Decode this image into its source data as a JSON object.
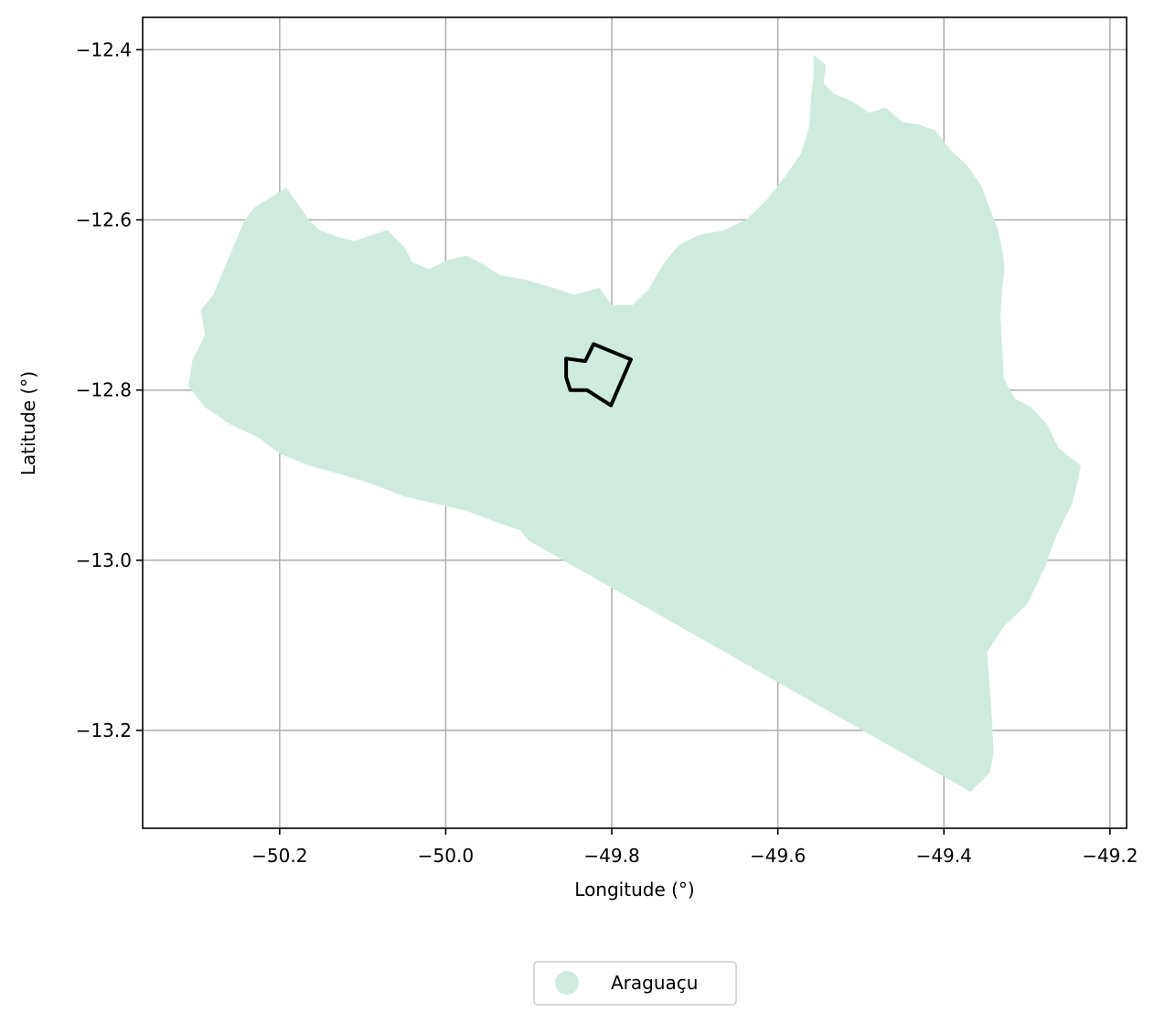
{
  "chart_data": {
    "type": "map",
    "title": "",
    "xlabel": "Longitude (°)",
    "ylabel": "Latitude (°)",
    "xlim": [
      -50.365,
      -49.18
    ],
    "ylim": [
      -13.315,
      -12.362
    ],
    "grid": true,
    "x_ticks": [
      {
        "value": -50.2,
        "label": "−50.2"
      },
      {
        "value": -50.0,
        "label": "−50.0"
      },
      {
        "value": -49.8,
        "label": "−49.8"
      },
      {
        "value": -49.6,
        "label": "−49.6"
      },
      {
        "value": -49.4,
        "label": "−49.4"
      },
      {
        "value": -49.2,
        "label": "−49.2"
      }
    ],
    "y_ticks": [
      {
        "value": -12.4,
        "label": "−12.4"
      },
      {
        "value": -12.6,
        "label": "−12.6"
      },
      {
        "value": -12.8,
        "label": "−12.8"
      },
      {
        "value": -13.0,
        "label": "−13.0"
      },
      {
        "value": -13.2,
        "label": "−13.2"
      }
    ],
    "legend": {
      "placement": "bottom-center",
      "entries": [
        {
          "name": "Araguaçu",
          "color": "#cfebdd"
        }
      ]
    },
    "region": {
      "name": "Araguaçu",
      "fill": "#cfebdd",
      "outline": [
        [
          -49.557,
          -12.406
        ],
        [
          -49.542,
          -12.418
        ],
        [
          -49.545,
          -12.44
        ],
        [
          -49.532,
          -12.452
        ],
        [
          -49.512,
          -12.46
        ],
        [
          -49.49,
          -12.474
        ],
        [
          -49.47,
          -12.468
        ],
        [
          -49.45,
          -12.485
        ],
        [
          -49.43,
          -12.488
        ],
        [
          -49.41,
          -12.495
        ],
        [
          -49.392,
          -12.518
        ],
        [
          -49.372,
          -12.536
        ],
        [
          -49.355,
          -12.56
        ],
        [
          -49.345,
          -12.586
        ],
        [
          -49.335,
          -12.612
        ],
        [
          -49.33,
          -12.633
        ],
        [
          -49.327,
          -12.656
        ],
        [
          -49.33,
          -12.684
        ],
        [
          -49.332,
          -12.716
        ],
        [
          -49.33,
          -12.748
        ],
        [
          -49.328,
          -12.786
        ],
        [
          -49.315,
          -12.81
        ],
        [
          -49.295,
          -12.82
        ],
        [
          -49.276,
          -12.84
        ],
        [
          -49.262,
          -12.868
        ],
        [
          -49.235,
          -12.889
        ],
        [
          -49.245,
          -12.932
        ],
        [
          -49.265,
          -12.972
        ],
        [
          -49.28,
          -13.012
        ],
        [
          -49.3,
          -13.052
        ],
        [
          -49.328,
          -13.078
        ],
        [
          -49.348,
          -13.108
        ],
        [
          -49.345,
          -13.152
        ],
        [
          -49.342,
          -13.188
        ],
        [
          -49.34,
          -13.226
        ],
        [
          -49.345,
          -13.25
        ],
        [
          -49.368,
          -13.272
        ],
        [
          -49.9,
          -12.977
        ],
        [
          -49.91,
          -12.965
        ],
        [
          -49.94,
          -12.955
        ],
        [
          -49.975,
          -12.942
        ],
        [
          -50.02,
          -12.932
        ],
        [
          -50.05,
          -12.925
        ],
        [
          -50.09,
          -12.91
        ],
        [
          -50.13,
          -12.898
        ],
        [
          -50.16,
          -12.89
        ],
        [
          -50.2,
          -12.875
        ],
        [
          -50.225,
          -12.856
        ],
        [
          -50.26,
          -12.84
        ],
        [
          -50.29,
          -12.82
        ],
        [
          -50.31,
          -12.795
        ],
        [
          -50.305,
          -12.765
        ],
        [
          -50.29,
          -12.735
        ],
        [
          -50.295,
          -12.706
        ],
        [
          -50.28,
          -12.688
        ],
        [
          -50.268,
          -12.66
        ],
        [
          -50.255,
          -12.63
        ],
        [
          -50.242,
          -12.6
        ],
        [
          -50.23,
          -12.585
        ],
        [
          -50.208,
          -12.572
        ],
        [
          -50.192,
          -12.562
        ],
        [
          -50.185,
          -12.572
        ],
        [
          -50.175,
          -12.585
        ],
        [
          -50.165,
          -12.6
        ],
        [
          -50.152,
          -12.612
        ],
        [
          -50.13,
          -12.62
        ],
        [
          -50.11,
          -12.625
        ],
        [
          -50.09,
          -12.618
        ],
        [
          -50.07,
          -12.612
        ],
        [
          -50.05,
          -12.632
        ],
        [
          -50.04,
          -12.65
        ],
        [
          -50.02,
          -12.658
        ],
        [
          -50.0,
          -12.648
        ],
        [
          -49.975,
          -12.642
        ],
        [
          -49.955,
          -12.652
        ],
        [
          -49.935,
          -12.665
        ],
        [
          -49.905,
          -12.67
        ],
        [
          -49.87,
          -12.68
        ],
        [
          -49.845,
          -12.688
        ],
        [
          -49.815,
          -12.68
        ],
        [
          -49.8,
          -12.7
        ],
        [
          -49.775,
          -12.7
        ],
        [
          -49.756,
          -12.682
        ],
        [
          -49.738,
          -12.652
        ],
        [
          -49.72,
          -12.63
        ],
        [
          -49.696,
          -12.618
        ],
        [
          -49.665,
          -12.612
        ],
        [
          -49.638,
          -12.6
        ],
        [
          -49.612,
          -12.575
        ],
        [
          -49.592,
          -12.55
        ],
        [
          -49.572,
          -12.522
        ],
        [
          -49.562,
          -12.49
        ],
        [
          -49.56,
          -12.455
        ],
        [
          -49.557,
          -12.43
        ]
      ]
    },
    "outlined_area": {
      "stroke": "#000000",
      "outline": [
        [
          -49.855,
          -12.763
        ],
        [
          -49.832,
          -12.766
        ],
        [
          -49.822,
          -12.746
        ],
        [
          -49.777,
          -12.764
        ],
        [
          -49.801,
          -12.818
        ],
        [
          -49.83,
          -12.8
        ],
        [
          -49.85,
          -12.8
        ],
        [
          -49.855,
          -12.785
        ]
      ]
    }
  }
}
